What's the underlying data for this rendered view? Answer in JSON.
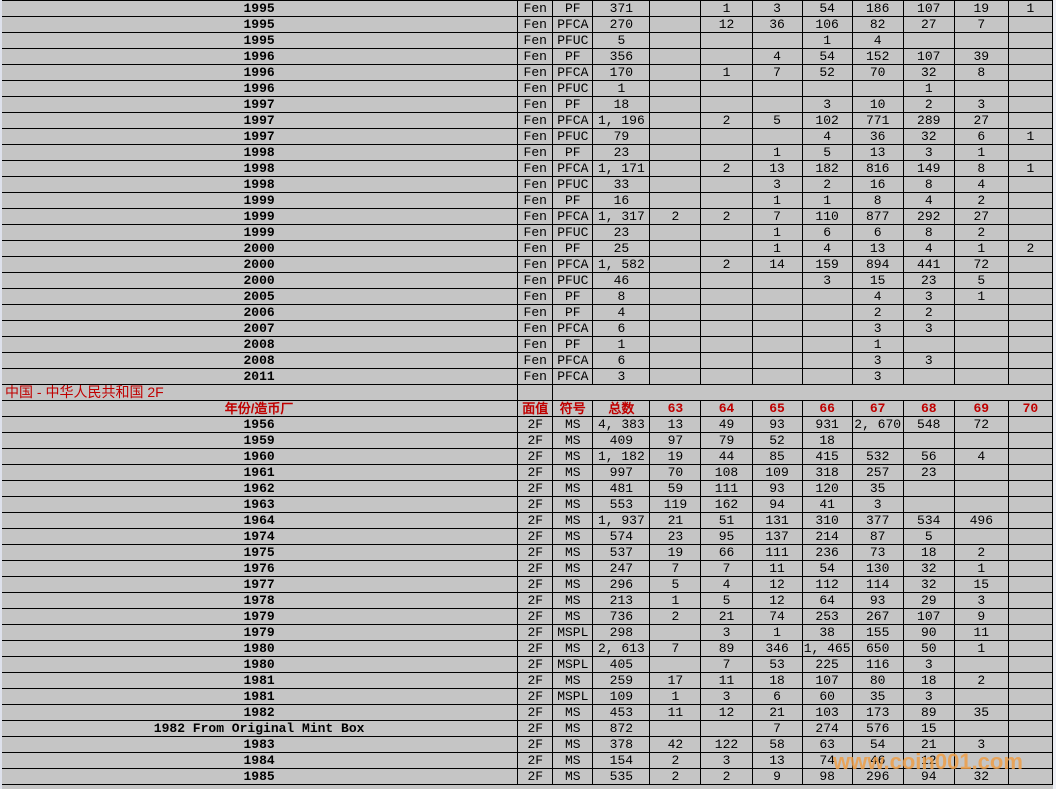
{
  "section_title": "中国 - 中华人民共和国 2F",
  "watermark": "www.coin001.com",
  "colors": {
    "cell_background": "#c5c5c5",
    "grid_line": "#000000",
    "accent_red": "#c00000",
    "watermark_orange": "#ed9d46"
  },
  "table": {
    "header": [
      "年份/造币厂",
      "面值",
      "符号",
      "总数",
      "63",
      "64",
      "65",
      "66",
      "67",
      "68",
      "69",
      "70"
    ],
    "column_names": [
      "year",
      "denomination",
      "symbol",
      "total",
      "grade-63",
      "grade-64",
      "grade-65",
      "grade-66",
      "grade-67",
      "grade-68",
      "grade-69",
      "grade-70"
    ],
    "fen_rows": [
      [
        "1995",
        "Fen",
        "PF",
        "371",
        "",
        "1",
        "3",
        "54",
        "186",
        "107",
        "19",
        "1"
      ],
      [
        "1995",
        "Fen",
        "PFCA",
        "270",
        "",
        "12",
        "36",
        "106",
        "82",
        "27",
        "7",
        ""
      ],
      [
        "1995",
        "Fen",
        "PFUC",
        "5",
        "",
        "",
        "",
        "1",
        "4",
        "",
        "",
        ""
      ],
      [
        "1996",
        "Fen",
        "PF",
        "356",
        "",
        "",
        "4",
        "54",
        "152",
        "107",
        "39",
        ""
      ],
      [
        "1996",
        "Fen",
        "PFCA",
        "170",
        "",
        "1",
        "7",
        "52",
        "70",
        "32",
        "8",
        ""
      ],
      [
        "1996",
        "Fen",
        "PFUC",
        "1",
        "",
        "",
        "",
        "",
        "",
        "1",
        "",
        ""
      ],
      [
        "1997",
        "Fen",
        "PF",
        "18",
        "",
        "",
        "",
        "3",
        "10",
        "2",
        "3",
        ""
      ],
      [
        "1997",
        "Fen",
        "PFCA",
        "1, 196",
        "",
        "2",
        "5",
        "102",
        "771",
        "289",
        "27",
        ""
      ],
      [
        "1997",
        "Fen",
        "PFUC",
        "79",
        "",
        "",
        "",
        "4",
        "36",
        "32",
        "6",
        "1"
      ],
      [
        "1998",
        "Fen",
        "PF",
        "23",
        "",
        "",
        "1",
        "5",
        "13",
        "3",
        "1",
        ""
      ],
      [
        "1998",
        "Fen",
        "PFCA",
        "1, 171",
        "",
        "2",
        "13",
        "182",
        "816",
        "149",
        "8",
        "1"
      ],
      [
        "1998",
        "Fen",
        "PFUC",
        "33",
        "",
        "",
        "3",
        "2",
        "16",
        "8",
        "4",
        ""
      ],
      [
        "1999",
        "Fen",
        "PF",
        "16",
        "",
        "",
        "1",
        "1",
        "8",
        "4",
        "2",
        ""
      ],
      [
        "1999",
        "Fen",
        "PFCA",
        "1, 317",
        "2",
        "2",
        "7",
        "110",
        "877",
        "292",
        "27",
        ""
      ],
      [
        "1999",
        "Fen",
        "PFUC",
        "23",
        "",
        "",
        "1",
        "6",
        "6",
        "8",
        "2",
        ""
      ],
      [
        "2000",
        "Fen",
        "PF",
        "25",
        "",
        "",
        "1",
        "4",
        "13",
        "4",
        "1",
        "2"
      ],
      [
        "2000",
        "Fen",
        "PFCA",
        "1, 582",
        "",
        "2",
        "14",
        "159",
        "894",
        "441",
        "72",
        ""
      ],
      [
        "2000",
        "Fen",
        "PFUC",
        "46",
        "",
        "",
        "",
        "3",
        "15",
        "23",
        "5",
        ""
      ],
      [
        "2005",
        "Fen",
        "PF",
        "8",
        "",
        "",
        "",
        "",
        "4",
        "3",
        "1",
        ""
      ],
      [
        "2006",
        "Fen",
        "PF",
        "4",
        "",
        "",
        "",
        "",
        "2",
        "2",
        "",
        ""
      ],
      [
        "2007",
        "Fen",
        "PFCA",
        "6",
        "",
        "",
        "",
        "",
        "3",
        "3",
        "",
        ""
      ],
      [
        "2008",
        "Fen",
        "PF",
        "1",
        "",
        "",
        "",
        "",
        "1",
        "",
        "",
        ""
      ],
      [
        "2008",
        "Fen",
        "PFCA",
        "6",
        "",
        "",
        "",
        "",
        "3",
        "3",
        "",
        ""
      ],
      [
        "2011",
        "Fen",
        "PFCA",
        "3",
        "",
        "",
        "",
        "",
        "3",
        "",
        "",
        ""
      ]
    ],
    "f2_rows": [
      [
        "1956",
        "2F",
        "MS",
        "4, 383",
        "13",
        "49",
        "93",
        "931",
        "2, 670",
        "548",
        "72",
        ""
      ],
      [
        "1959",
        "2F",
        "MS",
        "409",
        "97",
        "79",
        "52",
        "18",
        "",
        "",
        "",
        ""
      ],
      [
        "1960",
        "2F",
        "MS",
        "1, 182",
        "19",
        "44",
        "85",
        "415",
        "532",
        "56",
        "4",
        ""
      ],
      [
        "1961",
        "2F",
        "MS",
        "997",
        "70",
        "108",
        "109",
        "318",
        "257",
        "23",
        "",
        ""
      ],
      [
        "1962",
        "2F",
        "MS",
        "481",
        "59",
        "111",
        "93",
        "120",
        "35",
        "",
        "",
        ""
      ],
      [
        "1963",
        "2F",
        "MS",
        "553",
        "119",
        "162",
        "94",
        "41",
        "3",
        "",
        "",
        ""
      ],
      [
        "1964",
        "2F",
        "MS",
        "1, 937",
        "21",
        "51",
        "131",
        "310",
        "377",
        "534",
        "496",
        ""
      ],
      [
        "1974",
        "2F",
        "MS",
        "574",
        "23",
        "95",
        "137",
        "214",
        "87",
        "5",
        "",
        ""
      ],
      [
        "1975",
        "2F",
        "MS",
        "537",
        "19",
        "66",
        "111",
        "236",
        "73",
        "18",
        "2",
        ""
      ],
      [
        "1976",
        "2F",
        "MS",
        "247",
        "7",
        "7",
        "11",
        "54",
        "130",
        "32",
        "1",
        ""
      ],
      [
        "1977",
        "2F",
        "MS",
        "296",
        "5",
        "4",
        "12",
        "112",
        "114",
        "32",
        "15",
        ""
      ],
      [
        "1978",
        "2F",
        "MS",
        "213",
        "1",
        "5",
        "12",
        "64",
        "93",
        "29",
        "3",
        ""
      ],
      [
        "1979",
        "2F",
        "MS",
        "736",
        "2",
        "21",
        "74",
        "253",
        "267",
        "107",
        "9",
        ""
      ],
      [
        "1979",
        "2F",
        "MSPL",
        "298",
        "",
        "3",
        "1",
        "38",
        "155",
        "90",
        "11",
        ""
      ],
      [
        "1980",
        "2F",
        "MS",
        "2, 613",
        "7",
        "89",
        "346",
        "1, 465",
        "650",
        "50",
        "1",
        ""
      ],
      [
        "1980",
        "2F",
        "MSPL",
        "405",
        "",
        "7",
        "53",
        "225",
        "116",
        "3",
        "",
        ""
      ],
      [
        "1981",
        "2F",
        "MS",
        "259",
        "17",
        "11",
        "18",
        "107",
        "80",
        "18",
        "2",
        ""
      ],
      [
        "1981",
        "2F",
        "MSPL",
        "109",
        "1",
        "3",
        "6",
        "60",
        "35",
        "3",
        "",
        ""
      ],
      [
        "1982",
        "2F",
        "MS",
        "453",
        "11",
        "12",
        "21",
        "103",
        "173",
        "89",
        "35",
        ""
      ],
      [
        "1982 From Original Mint Box",
        "2F",
        "MS",
        "872",
        "",
        "",
        "7",
        "274",
        "576",
        "15",
        "",
        ""
      ],
      [
        "1983",
        "2F",
        "MS",
        "378",
        "42",
        "122",
        "58",
        "63",
        "54",
        "21",
        "3",
        ""
      ],
      [
        "1984",
        "2F",
        "MS",
        "154",
        "2",
        "3",
        "13",
        "74",
        "46",
        "12",
        "",
        ""
      ],
      [
        "1985",
        "2F",
        "MS",
        "535",
        "2",
        "2",
        "9",
        "98",
        "296",
        "94",
        "32",
        ""
      ]
    ]
  }
}
